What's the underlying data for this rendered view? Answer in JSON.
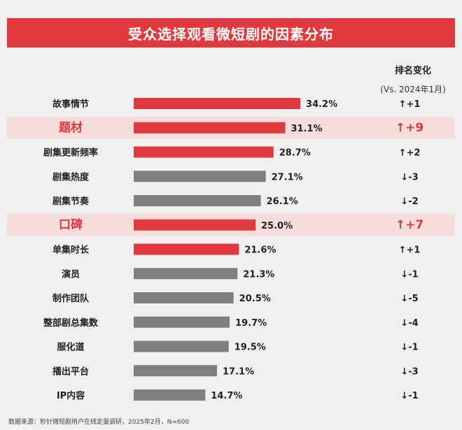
{
  "title": "受众选择观看微短剧的因素分布",
  "rank_header": "排名变化",
  "rank_subheader": "(Vs. 2024年1月)",
  "source": "数据来源：秒针微短剧用户在线定量调研，2025年2月，N=600",
  "colors": {
    "title_bg": "#e03a3e",
    "red_bar": "#e03a3e",
    "gray_bar": "#7f7f7f",
    "highlight_row": "#f7dcdc",
    "highlight_text": "#e03a3e"
  },
  "chart_data": {
    "type": "bar",
    "orientation": "horizontal",
    "unit": "%",
    "categories": [
      "故事情节",
      "题材",
      "剧集更新频率",
      "剧集热度",
      "剧集节奏",
      "口碑",
      "单集时长",
      "演员",
      "制作团队",
      "整部剧总集数",
      "服化道",
      "播出平台",
      "IP内容"
    ],
    "values": [
      34.2,
      31.1,
      28.7,
      27.1,
      26.1,
      25.0,
      21.6,
      21.3,
      20.5,
      19.7,
      19.5,
      17.1,
      14.7
    ],
    "value_labels": [
      "34.2%",
      "31.1%",
      "28.7%",
      "27.1%",
      "26.1%",
      "25.0%",
      "21.6%",
      "21.3%",
      "20.5%",
      "19.7%",
      "19.5%",
      "17.1%",
      "14.7%"
    ],
    "rank_change": [
      "↑+1",
      "↑+9",
      "↑+2",
      "↓-3",
      "↓-2",
      "↑+7",
      "↑+1",
      "↓-1",
      "↓-5",
      "↓-4",
      "↓-1",
      "↓-3",
      "↓-1"
    ],
    "bar_color": [
      "red",
      "red",
      "red",
      "gray",
      "gray",
      "red",
      "red",
      "gray",
      "gray",
      "gray",
      "gray",
      "gray",
      "gray"
    ],
    "highlighted": [
      false,
      true,
      false,
      false,
      false,
      true,
      false,
      false,
      false,
      false,
      false,
      false,
      false
    ]
  }
}
